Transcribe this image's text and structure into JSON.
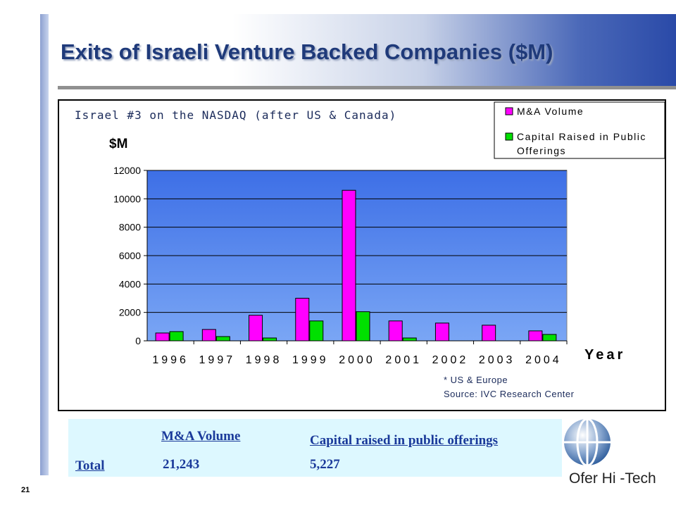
{
  "slide": {
    "title": "Exits of Israeli Venture Backed Companies ($M)",
    "page_number": "21"
  },
  "chart_data": {
    "type": "bar",
    "subtitle": "Israel #3 on the NASDAQ (after US & Canada)",
    "ylabel": "$M",
    "xlabel": "Year",
    "categories": [
      "1996",
      "1997",
      "1998",
      "1999",
      "2000",
      "2001",
      "2002",
      "2003",
      "2004"
    ],
    "series": [
      {
        "name": "M&A Volume",
        "color": "#ff00ff",
        "values": [
          550,
          800,
          1800,
          3000,
          10600,
          1400,
          1250,
          1100,
          700
        ]
      },
      {
        "name": "Capital Raised in Public Offerings",
        "color": "#00e000",
        "values": [
          650,
          300,
          200,
          1400,
          2050,
          200,
          0,
          0,
          450
        ]
      }
    ],
    "ylim": [
      0,
      12000
    ],
    "yticks": [
      0,
      2000,
      4000,
      6000,
      8000,
      10000,
      12000
    ],
    "grid": true,
    "legend": "top-right",
    "plot_background": "#4a7de8",
    "footnote": "* US & Europe",
    "source": "Source: IVC Research Center"
  },
  "totals_table": {
    "row_label": "Total",
    "col1_header": "M&A Volume",
    "col1_value": "21,243",
    "col2_header": "Capital raised in public offerings",
    "col2_value": "5,227"
  },
  "logo": {
    "text": "Ofer Hi -Tech",
    "icon": "globe-icon"
  }
}
